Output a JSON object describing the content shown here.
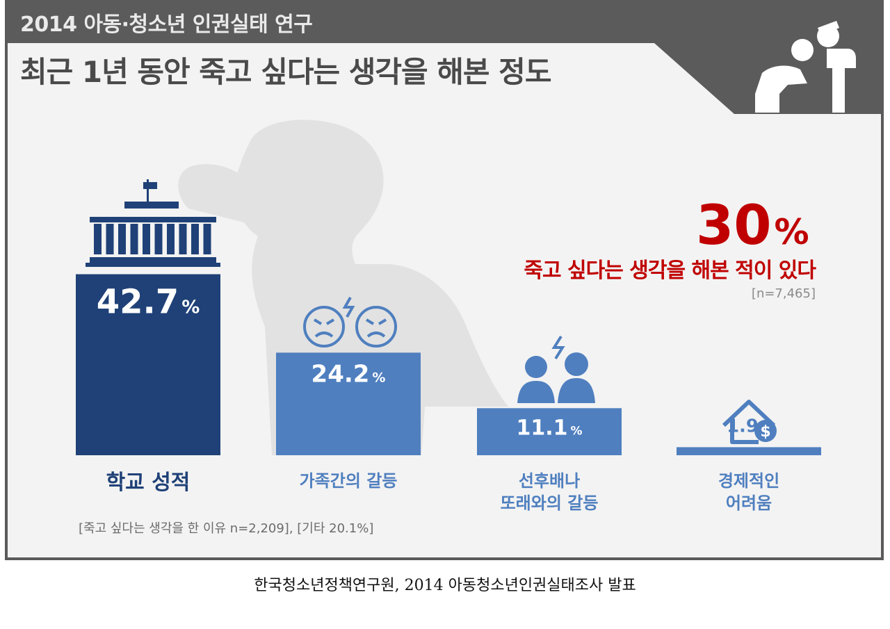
{
  "header": {
    "kicker": "2014 아동·청소년 인권실태 연구",
    "title": "최근 1년 동안 죽고 싶다는 생각을 해본 정도"
  },
  "highlight": {
    "value": "30",
    "unit": "%",
    "caption": "죽고 싶다는 생각을 해본 적이 있다",
    "n_label": "[n=7,465]"
  },
  "footnote": "[죽고 싶다는 생각을 한 이유 n=2,209], [기타 20.1%]",
  "source": "한국청소년정책연구원, 2014 아동청소년인권실태조사 발표",
  "colors": {
    "dark_bar": "#1f4177",
    "bar": "#4f7fbf",
    "highlight": "#c00000",
    "header_bg": "#5b5b5b",
    "silhouette": "#e2e2e2"
  },
  "chart_data": {
    "type": "bar",
    "categories": [
      "학교 성적",
      "가족간의 갈등",
      "선후배나 또래와의 갈등",
      "경제적인 어려움"
    ],
    "category_lines": [
      [
        "학교 성적"
      ],
      [
        "가족간의 갈등"
      ],
      [
        "선후배나",
        "또래와의 갈등"
      ],
      [
        "경제적인",
        "어려움"
      ]
    ],
    "values": [
      42.7,
      24.2,
      11.1,
      1.9
    ],
    "value_labels": [
      "42.7",
      "24.2",
      "11.1",
      "1.9"
    ],
    "unit": "%",
    "icons": [
      "school-building-icon",
      "frustrated-faces-icon",
      "students-conflict-icon",
      "house-money-icon"
    ],
    "ylim": [
      0,
      45
    ]
  }
}
